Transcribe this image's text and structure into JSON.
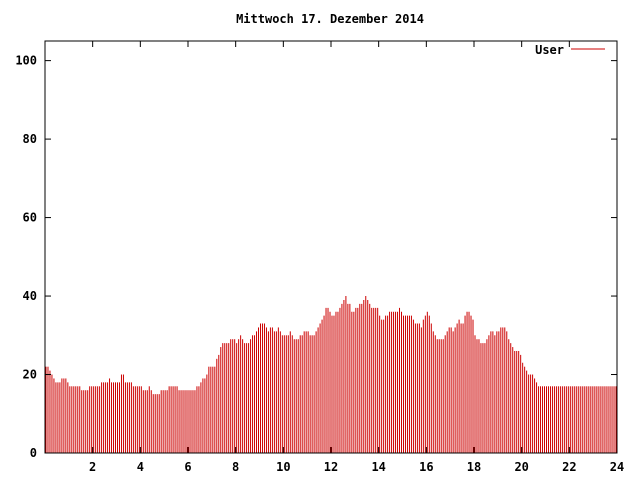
{
  "chart_data": {
    "type": "bar",
    "title": "Mittwoch 17. Dezember 2014",
    "xlabel": "",
    "ylabel": "",
    "xlim": [
      0,
      24
    ],
    "ylim": [
      0,
      105
    ],
    "x_ticks": [
      2,
      4,
      6,
      8,
      10,
      12,
      14,
      16,
      18,
      20,
      22,
      24
    ],
    "x_tick_labels": [
      "2",
      "4",
      "6",
      "8",
      "10",
      "12",
      "14",
      "16",
      "18",
      "20",
      "22",
      "24"
    ],
    "y_ticks": [
      0,
      20,
      40,
      60,
      80,
      100
    ],
    "y_tick_labels": [
      "0",
      "20",
      "40",
      "60",
      "80",
      "100"
    ],
    "grid": false,
    "legend_position": "top-right",
    "series": [
      {
        "name": "User",
        "color": "#cc0000",
        "bar_count_per_hour": 12,
        "hourly_samples": [
          [
            22,
            22,
            21,
            20,
            19,
            18,
            18,
            18,
            19,
            19,
            19,
            18
          ],
          [
            17,
            17,
            17,
            17,
            17,
            17,
            16,
            16,
            16,
            16,
            17,
            17
          ],
          [
            17,
            17,
            17,
            17,
            18,
            18,
            18,
            18,
            19,
            18,
            18,
            18
          ],
          [
            18,
            18,
            20,
            20,
            18,
            18,
            18,
            18,
            17,
            17,
            17,
            17
          ],
          [
            17,
            16,
            16,
            16,
            17,
            16,
            15,
            15,
            15,
            15,
            16,
            16
          ],
          [
            16,
            16,
            17,
            17,
            17,
            17,
            17,
            16,
            16,
            16,
            16,
            16
          ],
          [
            16,
            16,
            16,
            16,
            17,
            17,
            18,
            19,
            19,
            20,
            22,
            22
          ],
          [
            22,
            22,
            24,
            25,
            27,
            28,
            28,
            28,
            28,
            29,
            29,
            29
          ],
          [
            28,
            29,
            30,
            29,
            28,
            28,
            28,
            29,
            30,
            30,
            31,
            32
          ],
          [
            33,
            33,
            33,
            32,
            31,
            32,
            32,
            31,
            31,
            32,
            31,
            30
          ],
          [
            30,
            30,
            30,
            31,
            30,
            29,
            29,
            29,
            30,
            30,
            31,
            31
          ],
          [
            31,
            30,
            30,
            30,
            31,
            32,
            33,
            34,
            35,
            37,
            37,
            36
          ],
          [
            35,
            35,
            36,
            36,
            37,
            38,
            39,
            40,
            38,
            38,
            36,
            36
          ],
          [
            37,
            37,
            38,
            38,
            39,
            40,
            39,
            38,
            37,
            37,
            37,
            37
          ],
          [
            35,
            34,
            34,
            35,
            35,
            36,
            36,
            36,
            36,
            36,
            37,
            36
          ],
          [
            35,
            35,
            35,
            35,
            35,
            34,
            33,
            33,
            33,
            32,
            34,
            35
          ],
          [
            36,
            35,
            33,
            31,
            30,
            29,
            29,
            29,
            29,
            30,
            31,
            32
          ],
          [
            32,
            31,
            32,
            33,
            34,
            33,
            33,
            35,
            36,
            36,
            35,
            34
          ],
          [
            30,
            29,
            29,
            28,
            28,
            28,
            29,
            30,
            31,
            31,
            30,
            31
          ],
          [
            31,
            32,
            32,
            32,
            31,
            29,
            28,
            27,
            26,
            26,
            26,
            25
          ],
          [
            23,
            22,
            21,
            20,
            20,
            20,
            19,
            18,
            17,
            17,
            17,
            17
          ],
          [
            17,
            17,
            17,
            17,
            17,
            17,
            17,
            17,
            17,
            17,
            17,
            17
          ],
          [
            17,
            17,
            17,
            17,
            17,
            17,
            17,
            17,
            17,
            17,
            17,
            17
          ],
          [
            17,
            17,
            17,
            17,
            17,
            17,
            17,
            17,
            17,
            17,
            17,
            17
          ]
        ]
      }
    ]
  }
}
